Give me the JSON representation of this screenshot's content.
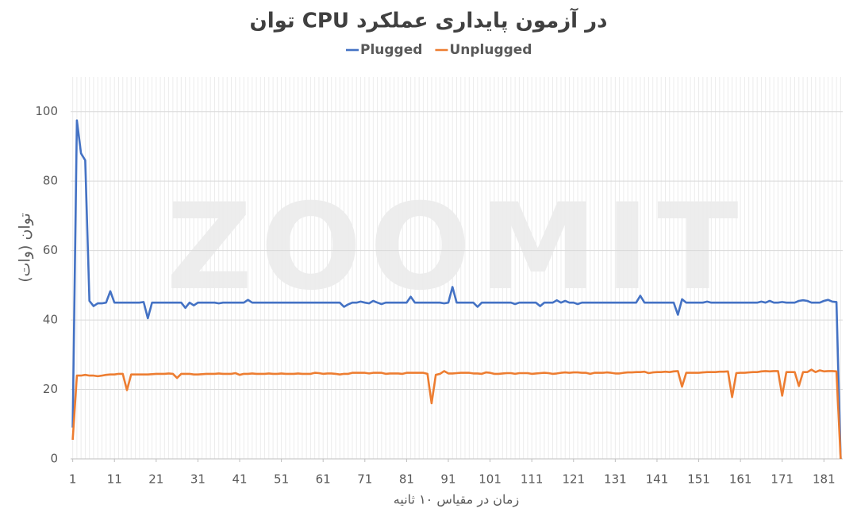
{
  "chart_data": {
    "type": "line",
    "title": "توان CPU در آزمون پایداری عملکرد",
    "x_label": "زمان در مقیاس ۱۰ ثانیه",
    "y_label": "توان (وات)",
    "watermark": "ZOOMIT",
    "legend": "top",
    "grid": true,
    "x": [
      1,
      2,
      3,
      4,
      5,
      6,
      7,
      8,
      9,
      10,
      11,
      12,
      13,
      14,
      15,
      16,
      17,
      18,
      19,
      20,
      21,
      22,
      23,
      24,
      25,
      26,
      27,
      28,
      29,
      30,
      31,
      32,
      33,
      34,
      35,
      36,
      37,
      38,
      39,
      40,
      41,
      42,
      43,
      44,
      45,
      46,
      47,
      48,
      49,
      50,
      51,
      52,
      53,
      54,
      55,
      56,
      57,
      58,
      59,
      60,
      61,
      62,
      63,
      64,
      65,
      66,
      67,
      68,
      69,
      70,
      71,
      72,
      73,
      74,
      75,
      76,
      77,
      78,
      79,
      80,
      81,
      82,
      83,
      84,
      85,
      86,
      87,
      88,
      89,
      90,
      91,
      92,
      93,
      94,
      95,
      96,
      97,
      98,
      99,
      100,
      101,
      102,
      103,
      104,
      105,
      106,
      107,
      108,
      109,
      110,
      111,
      112,
      113,
      114,
      115,
      116,
      117,
      118,
      119,
      120,
      121,
      122,
      123,
      124,
      125,
      126,
      127,
      128,
      129,
      130,
      131,
      132,
      133,
      134,
      135,
      136,
      137,
      138,
      139,
      140,
      141,
      142,
      143,
      144,
      145,
      146,
      147,
      148,
      149,
      150,
      151,
      152,
      153,
      154,
      155,
      156,
      157,
      158,
      159,
      160,
      161,
      162,
      163,
      164,
      165,
      166,
      167,
      168,
      169,
      170,
      171,
      172,
      173,
      174,
      175,
      176,
      177,
      178,
      179,
      180,
      181,
      182,
      183,
      184,
      185
    ],
    "xlim": [
      0.5,
      185.5
    ],
    "xticks": [
      1,
      11,
      21,
      31,
      41,
      51,
      61,
      71,
      81,
      91,
      101,
      111,
      121,
      131,
      141,
      151,
      161,
      171,
      181
    ],
    "ylim": [
      0,
      110
    ],
    "yticks": [
      0,
      20,
      40,
      60,
      80,
      100
    ],
    "series": [
      {
        "name": "Plugged",
        "color": "#4472c4",
        "values": [
          9,
          97.5,
          88,
          86,
          45.5,
          44,
          44.8,
          44.8,
          45,
          48.3,
          45,
          45,
          45,
          45,
          45,
          45,
          45,
          45.2,
          40.5,
          45,
          45,
          45,
          45,
          45,
          45,
          45,
          45,
          43.5,
          45,
          44.2,
          45,
          45,
          45,
          45,
          45,
          44.8,
          45,
          45,
          45,
          45,
          45,
          45,
          45.8,
          45,
          45,
          45,
          45,
          45,
          45,
          45,
          45,
          45,
          45,
          45,
          45,
          45,
          45,
          45,
          45,
          45,
          45,
          45,
          45,
          45,
          45,
          43.8,
          44.5,
          45,
          45,
          45.3,
          45,
          44.8,
          45.5,
          45,
          44.6,
          45,
          45,
          45,
          45,
          45,
          45,
          46.7,
          45,
          45,
          45,
          45,
          45,
          45,
          45,
          44.8,
          45,
          49.5,
          45,
          45,
          45,
          45,
          45,
          43.8,
          45,
          45,
          45,
          45,
          45,
          45,
          45,
          45,
          44.6,
          45,
          45,
          45,
          45,
          45,
          44,
          45,
          45,
          45,
          45.7,
          45,
          45.5,
          45,
          45,
          44.6,
          45,
          45,
          45,
          45,
          45,
          45,
          45,
          45,
          45,
          45,
          45,
          45,
          45,
          45,
          47,
          45,
          45,
          45,
          45,
          45,
          45,
          45,
          45,
          41.5,
          46,
          45,
          45,
          45,
          45,
          45,
          45.3,
          45,
          45,
          45,
          45,
          45,
          45,
          45,
          45,
          45,
          45,
          45,
          45,
          45.3,
          45,
          45.5,
          45,
          45,
          45.2,
          45,
          45,
          45,
          45.5,
          45.7,
          45.5,
          45,
          45,
          45,
          45.5,
          45.8,
          45.3,
          45.2,
          0
        ]
      },
      {
        "name": "Unplugged",
        "color": "#ed7d31",
        "values": [
          5.5,
          24,
          24,
          24.2,
          24,
          24,
          23.8,
          24,
          24.2,
          24.3,
          24.3,
          24.5,
          24.5,
          19.8,
          24.3,
          24.3,
          24.3,
          24.3,
          24.3,
          24.4,
          24.5,
          24.5,
          24.5,
          24.6,
          24.5,
          23.3,
          24.5,
          24.5,
          24.5,
          24.3,
          24.3,
          24.4,
          24.5,
          24.5,
          24.5,
          24.6,
          24.5,
          24.5,
          24.5,
          24.7,
          24.2,
          24.5,
          24.5,
          24.6,
          24.5,
          24.5,
          24.5,
          24.6,
          24.5,
          24.5,
          24.6,
          24.5,
          24.5,
          24.5,
          24.6,
          24.5,
          24.5,
          24.5,
          24.8,
          24.7,
          24.5,
          24.6,
          24.6,
          24.5,
          24.3,
          24.5,
          24.5,
          24.8,
          24.8,
          24.8,
          24.8,
          24.6,
          24.8,
          24.8,
          24.8,
          24.5,
          24.6,
          24.6,
          24.6,
          24.5,
          24.8,
          24.8,
          24.8,
          24.8,
          24.8,
          24.5,
          16,
          24.2,
          24.5,
          25.3,
          24.6,
          24.6,
          24.7,
          24.8,
          24.8,
          24.8,
          24.6,
          24.6,
          24.5,
          24.9,
          24.8,
          24.5,
          24.5,
          24.6,
          24.7,
          24.7,
          24.5,
          24.7,
          24.7,
          24.7,
          24.5,
          24.6,
          24.7,
          24.8,
          24.7,
          24.5,
          24.6,
          24.8,
          24.9,
          24.8,
          24.9,
          24.9,
          24.8,
          24.8,
          24.5,
          24.8,
          24.8,
          24.8,
          24.9,
          24.8,
          24.6,
          24.6,
          24.8,
          24.9,
          24.9,
          25,
          25,
          25.1,
          24.7,
          24.9,
          25,
          25,
          25.1,
          25,
          25.2,
          25.3,
          20.8,
          24.8,
          24.8,
          24.8,
          24.8,
          24.9,
          25,
          25,
          25,
          25.1,
          25.1,
          25.2,
          17.8,
          24.7,
          24.8,
          24.8,
          24.9,
          25,
          25,
          25.2,
          25.3,
          25.2,
          25.3,
          25.3,
          18.2,
          25,
          25,
          25,
          21,
          25,
          25,
          25.7,
          25,
          25.5,
          25.2,
          25.3,
          25.3,
          25.2,
          0
        ]
      }
    ]
  }
}
